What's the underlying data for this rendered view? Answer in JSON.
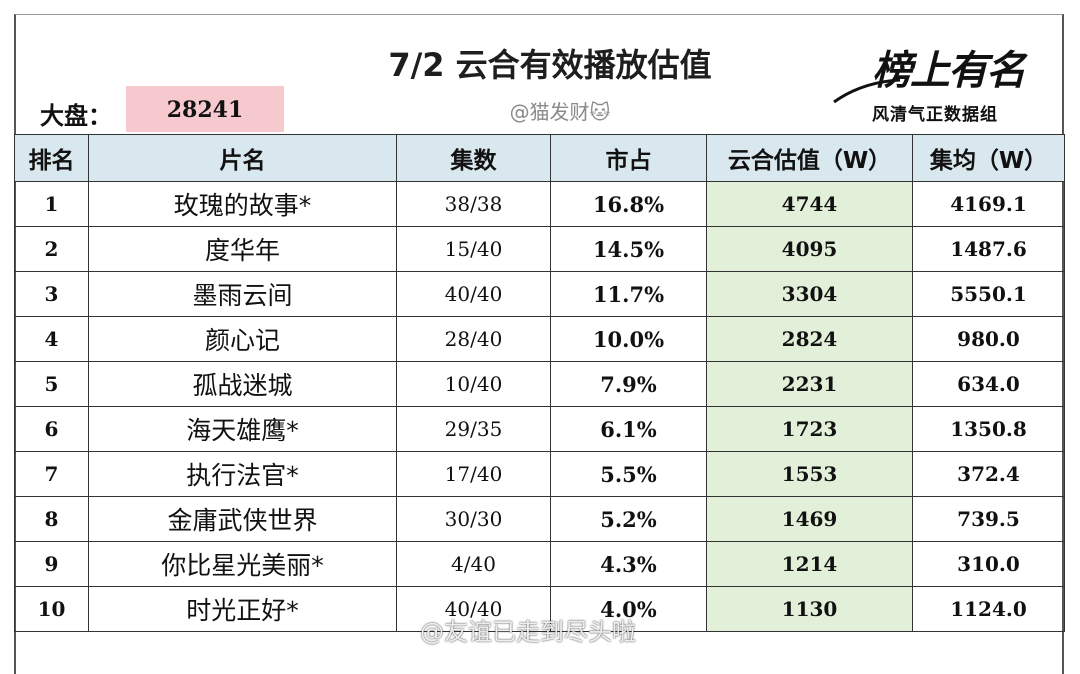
{
  "header": {
    "title": "7/2 云合有效播放估值",
    "handle": "@猫发财🐱",
    "market_label": "大盘：",
    "market_value": "28241",
    "logo_text": "榜上有名",
    "logo_sub": "风清气正数据组"
  },
  "table": {
    "columns": [
      "排名",
      "片名",
      "集数",
      "市占",
      "云合估值（W）",
      "集均（W）"
    ],
    "rows": [
      {
        "rank": "1",
        "name": "玫瑰的故事*",
        "episodes": "38/38",
        "share": "16.8%",
        "estimate": "4744",
        "avg": "4169.1"
      },
      {
        "rank": "2",
        "name": "度华年",
        "episodes": "15/40",
        "share": "14.5%",
        "estimate": "4095",
        "avg": "1487.6"
      },
      {
        "rank": "3",
        "name": "墨雨云间",
        "episodes": "40/40",
        "share": "11.7%",
        "estimate": "3304",
        "avg": "5550.1"
      },
      {
        "rank": "4",
        "name": "颜心记",
        "episodes": "28/40",
        "share": "10.0%",
        "estimate": "2824",
        "avg": "980.0"
      },
      {
        "rank": "5",
        "name": "孤战迷城",
        "episodes": "10/40",
        "share": "7.9%",
        "estimate": "2231",
        "avg": "634.0"
      },
      {
        "rank": "6",
        "name": "海天雄鹰*",
        "episodes": "29/35",
        "share": "6.1%",
        "estimate": "1723",
        "avg": "1350.8"
      },
      {
        "rank": "7",
        "name": "执行法官*",
        "episodes": "17/40",
        "share": "5.5%",
        "estimate": "1553",
        "avg": "372.4"
      },
      {
        "rank": "8",
        "name": "金庸武侠世界",
        "episodes": "30/30",
        "share": "5.2%",
        "estimate": "1469",
        "avg": "739.5"
      },
      {
        "rank": "9",
        "name": "你比星光美丽*",
        "episodes": "4/40",
        "share": "4.3%",
        "estimate": "1214",
        "avg": "310.0"
      },
      {
        "rank": "10",
        "name": "时光正好*",
        "episodes": "40/40",
        "share": "4.0%",
        "estimate": "1130",
        "avg": "1124.0"
      }
    ]
  },
  "watermark": "@友谊已走到尽头啦",
  "colors": {
    "header_bg": "#d9e7ee",
    "estimate_bg": "#e3f0d9",
    "market_bg": "#f6c9cf"
  }
}
